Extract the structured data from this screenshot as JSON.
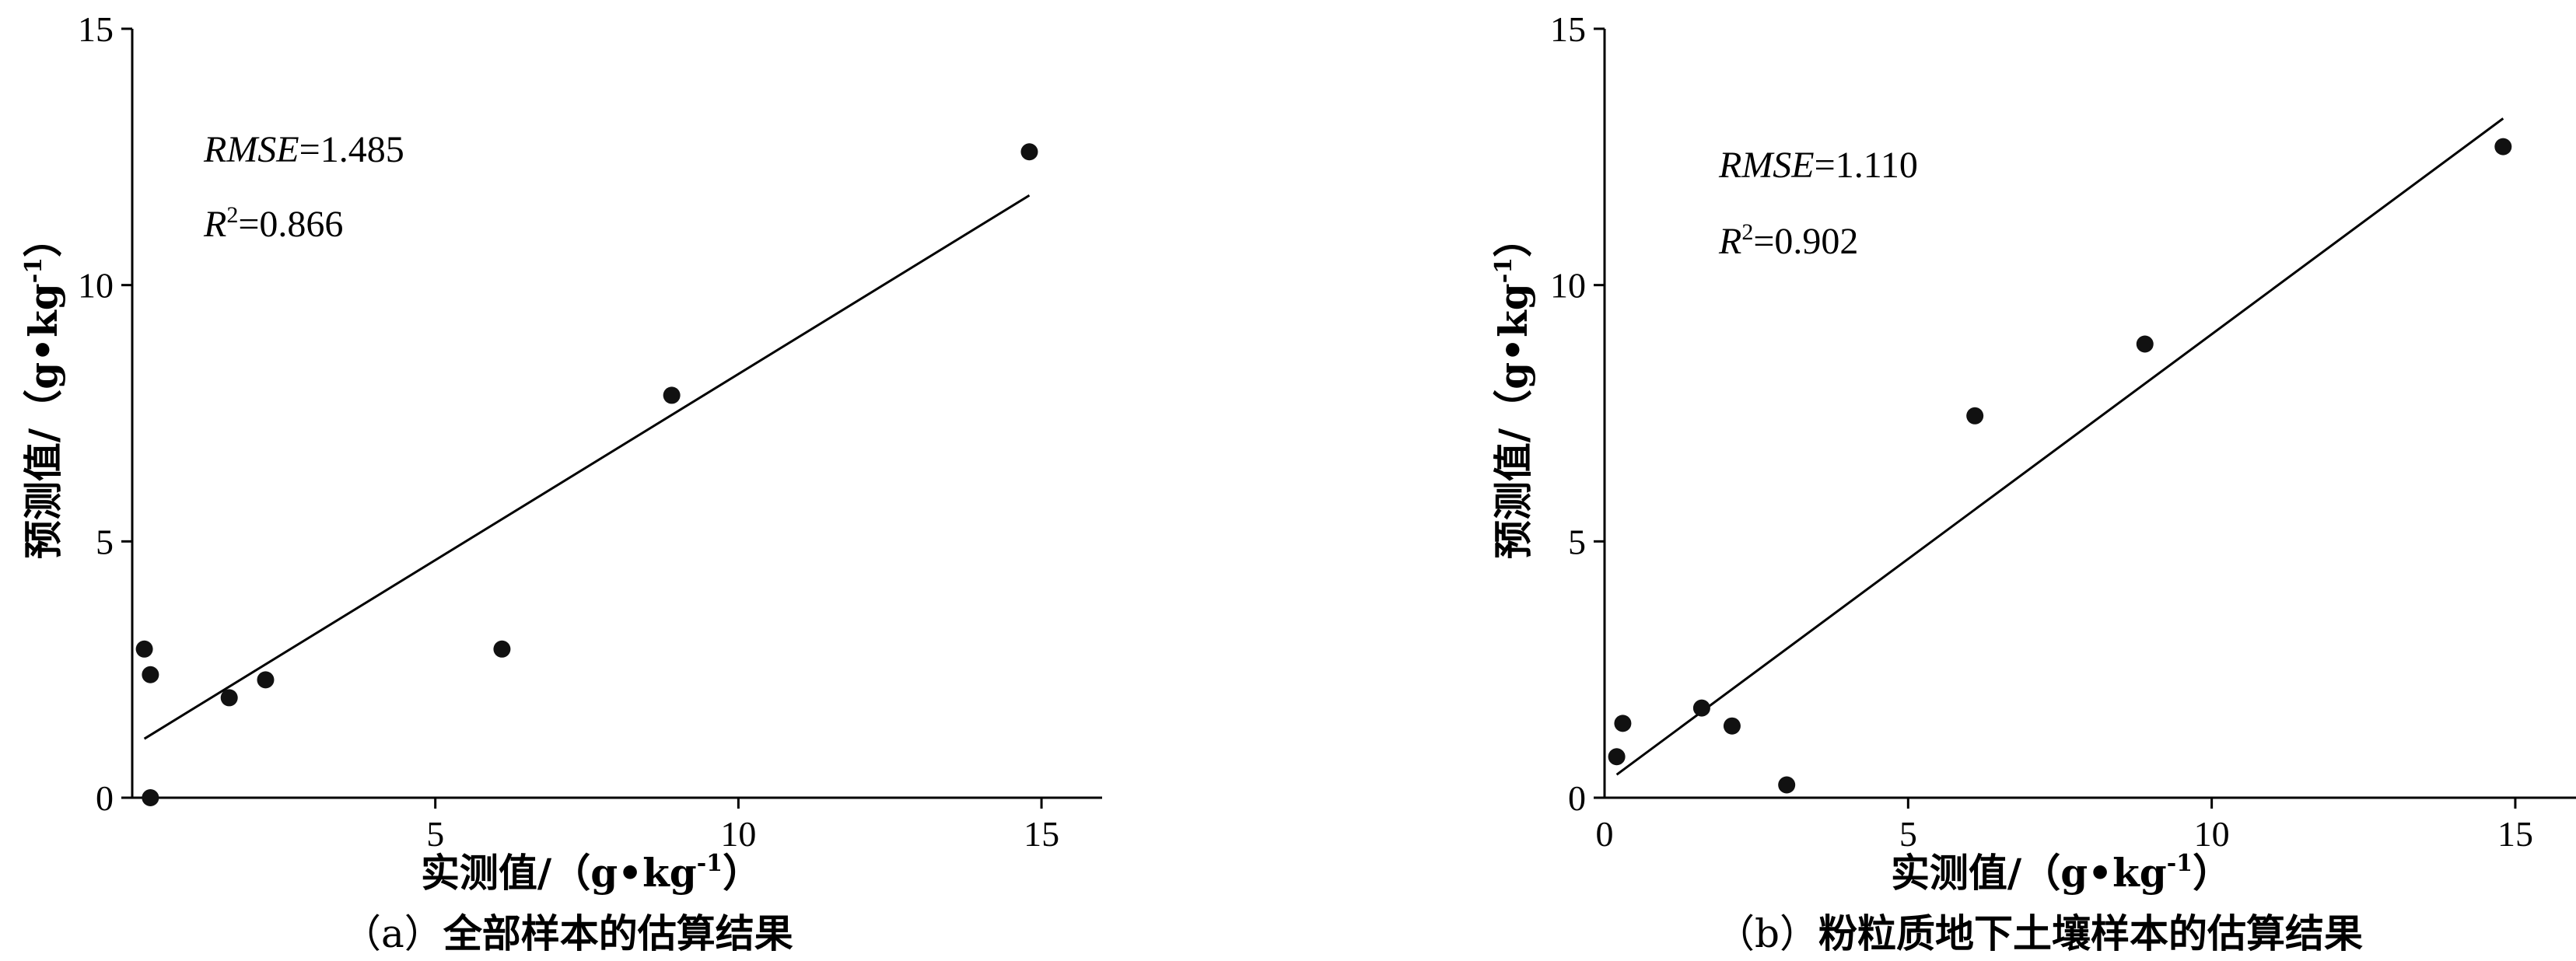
{
  "chart_data": [
    {
      "type": "scatter",
      "caption_prefix": "（a）",
      "caption_title": "全部样本的估算结果",
      "xlabel_text": "实测值/（g•kg",
      "ylabel_text": "预测值/（g•kg",
      "unit_sup": "-1",
      "unit_close": "）",
      "annotation_rmse_label": "RMSE",
      "annotation_rmse_value": "=1.485",
      "annotation_r2_label": "R",
      "annotation_r2_sup": "2",
      "annotation_r2_value": "=0.866",
      "xlim": [
        0,
        16
      ],
      "ylim": [
        0,
        15
      ],
      "xticks": [
        5,
        10,
        15
      ],
      "yticks": [
        0,
        5,
        10,
        15
      ],
      "x_origin_label": "",
      "points": [
        {
          "x": 0.2,
          "y": 2.9
        },
        {
          "x": 0.3,
          "y": 2.4
        },
        {
          "x": 0.3,
          "y": 0.0
        },
        {
          "x": 1.6,
          "y": 1.95
        },
        {
          "x": 2.2,
          "y": 2.3
        },
        {
          "x": 6.1,
          "y": 2.9
        },
        {
          "x": 8.9,
          "y": 7.85
        },
        {
          "x": 14.8,
          "y": 12.6
        }
      ],
      "fit_line": {
        "x": [
          0.2,
          14.8
        ],
        "y": [
          1.15,
          11.75
        ]
      }
    },
    {
      "type": "scatter",
      "caption_prefix": "（b）",
      "caption_title": "粉粒质地下土壤样本的估算结果",
      "xlabel_text": "实测值/（g•kg",
      "ylabel_text": "预测值/（g•kg",
      "unit_sup": "-1",
      "unit_close": "）",
      "annotation_rmse_label": "RMSE",
      "annotation_rmse_value": "=1.110",
      "annotation_r2_label": "R",
      "annotation_r2_sup": "2",
      "annotation_r2_value": "=0.902",
      "xlim": [
        0,
        16
      ],
      "ylim": [
        0,
        15
      ],
      "xticks": [
        5,
        10,
        15
      ],
      "yticks": [
        0,
        5,
        10,
        15
      ],
      "x_origin_label": "0",
      "points": [
        {
          "x": 0.3,
          "y": 1.45
        },
        {
          "x": 0.2,
          "y": 0.8
        },
        {
          "x": 1.6,
          "y": 1.75
        },
        {
          "x": 2.1,
          "y": 1.4
        },
        {
          "x": 3.0,
          "y": 0.25
        },
        {
          "x": 6.1,
          "y": 7.45
        },
        {
          "x": 8.9,
          "y": 8.85
        },
        {
          "x": 14.8,
          "y": 12.7
        }
      ],
      "fit_line": {
        "x": [
          0.2,
          14.8
        ],
        "y": [
          0.45,
          13.25
        ]
      }
    }
  ]
}
